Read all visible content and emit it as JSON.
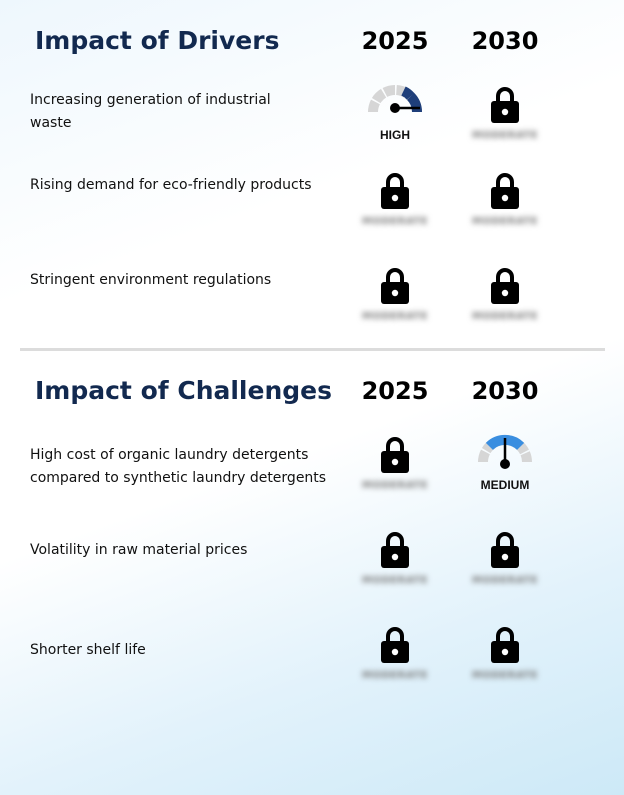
{
  "drivers": {
    "title": "Impact of Drivers",
    "year_1": "2025",
    "year_2": "2030",
    "rows": [
      {
        "label": "Increasing generation of industrial waste",
        "y2025": {
          "type": "gauge",
          "level": "HIGH",
          "color": "#1f3f7a"
        },
        "y2030": {
          "type": "locked",
          "hint": "MODERATE"
        }
      },
      {
        "label": "Rising demand for eco-friendly products",
        "y2025": {
          "type": "locked",
          "hint": "MODERATE"
        },
        "y2030": {
          "type": "locked",
          "hint": "MODERATE"
        }
      },
      {
        "label": "Stringent environment regulations",
        "y2025": {
          "type": "locked",
          "hint": "MODERATE"
        },
        "y2030": {
          "type": "locked",
          "hint": "MODERATE"
        }
      }
    ]
  },
  "challenges": {
    "title": "Impact of Challenges",
    "year_1": "2025",
    "year_2": "2030",
    "rows": [
      {
        "label": "High cost of organic laundry detergents compared to synthetic laundry detergents",
        "y2025": {
          "type": "locked",
          "hint": "MODERATE"
        },
        "y2030": {
          "type": "gauge",
          "level": "MEDIUM",
          "color": "#3a8ee0"
        }
      },
      {
        "label": "Volatility in raw material prices",
        "y2025": {
          "type": "locked",
          "hint": "MODERATE"
        },
        "y2030": {
          "type": "locked",
          "hint": "MODERATE"
        }
      },
      {
        "label": "Shorter shelf life",
        "y2025": {
          "type": "locked",
          "hint": "MODERATE"
        },
        "y2030": {
          "type": "locked",
          "hint": "MODERATE"
        }
      }
    ]
  },
  "icons": {
    "lock": "lock-icon",
    "gauge": "gauge-icon"
  }
}
